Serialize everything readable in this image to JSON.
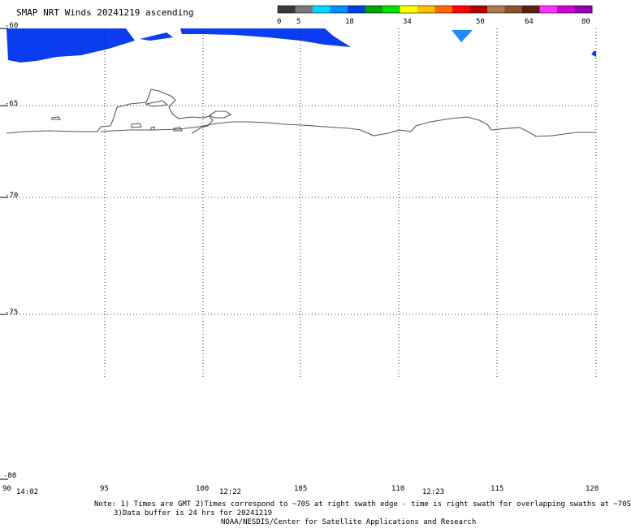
{
  "title": "SMAP NRT Winds 20241219 ascending",
  "colorbar": {
    "tick_labels": [
      "0",
      "5",
      "18",
      "34",
      "50",
      "64",
      "80"
    ],
    "colors": [
      "#3a3a3a",
      "#7a7a7a",
      "#00d8ff",
      "#0090ff",
      "#0040e0",
      "#00a000",
      "#00e000",
      "#ffff00",
      "#ffc000",
      "#ff6a00",
      "#ff0000",
      "#b00000",
      "#b07850",
      "#8a5030",
      "#5a2010",
      "#ff30ff",
      "#d000d0",
      "#9000b0"
    ]
  },
  "map": {
    "lat_labels": [
      "-60",
      "-65",
      "-70",
      "-75",
      "-80"
    ],
    "lon_labels": [
      "90",
      "95",
      "100",
      "105",
      "110",
      "115",
      "120"
    ],
    "time_labels": [
      "14:02",
      "12:22",
      "12:23"
    ]
  },
  "notes": {
    "line1": "Note: 1) Times are GMT 2)Times correspond to ~70S at right swath edge - time is right swath for overlapping swaths at ~70S",
    "line2": "3)Data buffer is 24 hrs for 20241219",
    "line3": "NOAA/NESDIS/Center for Satellite Applications and Research"
  },
  "swath_color": "#0a3cf0",
  "swath_light_color": "#1e8cff"
}
